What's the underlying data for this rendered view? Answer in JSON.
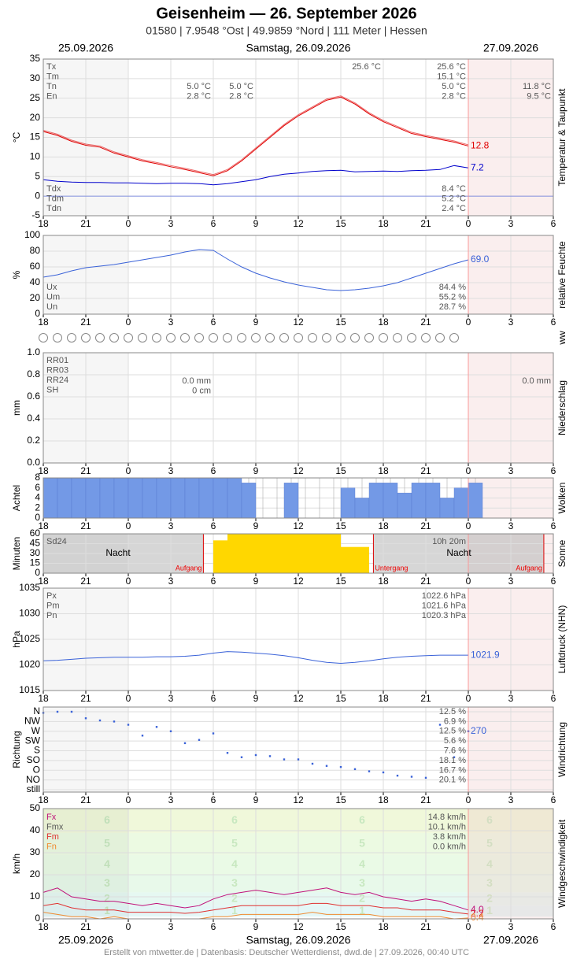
{
  "header": {
    "title": "Geisenheim  —  26. September 2026",
    "subtitle": "01580  |  7.9548 °Ost  |  49.9859 °Nord  |  111 Meter  |  Hessen",
    "date_left": "25.09.2026",
    "date_center": "Samstag, 26.09.2026",
    "date_right": "27.09.2026"
  },
  "x_axis": {
    "xlim": [
      0,
      36
    ],
    "xticks": [
      {
        "value": 0,
        "label": "18"
      },
      {
        "value": 3,
        "label": "21"
      },
      {
        "value": 6,
        "label": "0"
      },
      {
        "value": 9,
        "label": "3"
      },
      {
        "value": 12,
        "label": "6"
      },
      {
        "value": 15,
        "label": "9"
      },
      {
        "value": 18,
        "label": "12"
      },
      {
        "value": 21,
        "label": "15"
      },
      {
        "value": 24,
        "label": "18"
      },
      {
        "value": 27,
        "label": "21"
      },
      {
        "value": 30,
        "label": "0"
      },
      {
        "value": 33,
        "label": "3"
      },
      {
        "value": 36,
        "label": "6"
      }
    ],
    "now": 30,
    "x": [
      0,
      1,
      2,
      3,
      4,
      5,
      6,
      7,
      8,
      9,
      10,
      11,
      12,
      13,
      14,
      15,
      16,
      17,
      18,
      19,
      20,
      21,
      22,
      23,
      24,
      25,
      26,
      27,
      28,
      29,
      30
    ]
  },
  "ww": {
    "title": "ww"
  },
  "chart_data": [
    {
      "type": "line",
      "title": "Temperatur & Taupunkt",
      "ylabel": "°C",
      "ylim": [
        -5,
        35
      ],
      "yticks": [
        -5,
        0,
        5,
        10,
        15,
        20,
        25,
        30,
        35
      ],
      "grid": true,
      "series": [
        {
          "color": "#e00000",
          "values": [
            16.5,
            15.5,
            14,
            13,
            12.5,
            11,
            10,
            9,
            8.3,
            7.5,
            6.8,
            6,
            5.2,
            6.5,
            9,
            12,
            15,
            18,
            20.5,
            22.5,
            24.5,
            25.3,
            23.5,
            21,
            19,
            17.5,
            16,
            15.2,
            14.5,
            13.8,
            12.8
          ],
          "end_label": "12.8"
        },
        {
          "color": "#0000cc",
          "values": [
            4.2,
            3.8,
            3.6,
            3.5,
            3.5,
            3.4,
            3.4,
            3.3,
            3.2,
            3.3,
            3.3,
            3.2,
            2.9,
            3.2,
            3.7,
            4.2,
            5,
            5.6,
            5.9,
            6.3,
            6.5,
            6.6,
            6.2,
            6.3,
            6.4,
            6.3,
            6.5,
            6.6,
            6.8,
            7.8,
            7.2
          ],
          "end_label": "7.2"
        }
      ],
      "notes": {
        "left_top": [
          "Tx",
          "Tm",
          "Tn",
          "En"
        ],
        "max_col": [
          "25.6 °C"
        ],
        "right_top": [
          "25.6 °C",
          "15.1 °C",
          "5.0 °C",
          "2.8 °C"
        ],
        "night1": [
          "5.0 °C",
          "2.8 °C"
        ],
        "night2": [
          "5.0 °C",
          "2.8 °C"
        ],
        "far_right": [
          "11.8 °C",
          "9.5 °C"
        ],
        "left_bottom": [
          "Tdx",
          "Tdm",
          "Tdn"
        ],
        "right_bottom": [
          "8.4 °C",
          "5.2 °C",
          "2.4 °C"
        ]
      }
    },
    {
      "type": "line",
      "title": "relative Feuchte",
      "ylabel": "%",
      "ylim": [
        0,
        100
      ],
      "yticks": [
        0,
        20,
        40,
        60,
        80,
        100
      ],
      "grid": true,
      "series": [
        {
          "color": "#3a62d8",
          "values": [
            47,
            50,
            55,
            59,
            61,
            63,
            66,
            69,
            72,
            75,
            79,
            82,
            81,
            70,
            60,
            52,
            46,
            41,
            37,
            34,
            31,
            30,
            31,
            33,
            36,
            40,
            46,
            52,
            58,
            64,
            69
          ],
          "end_label": "69.0"
        }
      ],
      "notes": {
        "left_bottom": [
          "Ux",
          "Um",
          "Un"
        ],
        "right_bottom": [
          "84.4 %",
          "55.2 %",
          "28.7 %"
        ]
      }
    },
    {
      "type": "bar",
      "title": "Niederschlag",
      "ylabel": "mm",
      "ylim": [
        0,
        1
      ],
      "yticks": [
        {
          "value": 0,
          "label": "0.0"
        },
        {
          "value": 0.2,
          "label": "0.2"
        },
        {
          "value": 0.4,
          "label": "0.4"
        },
        {
          "value": 0.6,
          "label": "0.6"
        },
        {
          "value": 0.8,
          "label": "0.8"
        },
        {
          "value": 1,
          "label": "1.0"
        }
      ],
      "grid": true,
      "color": "#3a62d8",
      "values": [
        0,
        0,
        0,
        0,
        0,
        0,
        0,
        0,
        0,
        0,
        0,
        0,
        0,
        0,
        0,
        0,
        0,
        0,
        0,
        0,
        0,
        0,
        0,
        0,
        0,
        0,
        0,
        0,
        0,
        0,
        0
      ],
      "notes": {
        "left_top": [
          "RR01",
          "RR03",
          "RR24",
          "SH"
        ],
        "mid": [
          "0.0 mm",
          "0 cm"
        ],
        "far_right": [
          "0.0 mm"
        ]
      }
    },
    {
      "type": "bar",
      "title": "Wolken",
      "ylabel": "Achtel",
      "ylim": [
        0,
        8
      ],
      "yticks": [
        0,
        2,
        4,
        6,
        8
      ],
      "grid": true,
      "color": "#7399e6",
      "values": [
        8,
        8,
        8,
        8,
        8,
        8,
        8,
        8,
        8,
        8,
        8,
        8,
        8,
        8,
        7,
        0,
        0,
        7,
        0,
        0,
        0,
        6,
        4,
        7,
        7,
        5,
        7,
        7,
        4,
        6,
        7
      ],
      "notes": {}
    },
    {
      "type": "bar",
      "title": "Sonne",
      "ylabel": "Minuten",
      "ylim": [
        0,
        60
      ],
      "yticks": [
        0,
        15,
        30,
        45,
        60
      ],
      "grid": true,
      "color": "#ffd700",
      "values": [
        0,
        0,
        0,
        0,
        0,
        0,
        0,
        0,
        0,
        0,
        0,
        0,
        50,
        60,
        60,
        60,
        60,
        60,
        60,
        60,
        60,
        40,
        40,
        0,
        0,
        0,
        0,
        0,
        0,
        0,
        0
      ],
      "events": [
        {
          "x": 11.3,
          "label": "Aufgang"
        },
        {
          "x": 23.3,
          "label": "Untergang"
        },
        {
          "x": 35.33,
          "label": "Aufgang"
        }
      ],
      "notes": {
        "left_top": [
          "Sd24"
        ],
        "night1": [
          "Nacht"
        ],
        "night2": [
          "Nacht"
        ],
        "total": [
          "10h 20m"
        ]
      }
    },
    {
      "type": "line",
      "title": "Luftdruck (NHN)",
      "ylabel": "hPa",
      "ylim": [
        1015,
        1035
      ],
      "yticks": [
        1015,
        1020,
        1025,
        1030,
        1035
      ],
      "grid": true,
      "series": [
        {
          "color": "#3a62d8",
          "values": [
            1020.8,
            1020.9,
            1021.1,
            1021.3,
            1021.4,
            1021.5,
            1021.5,
            1021.5,
            1021.6,
            1021.6,
            1021.7,
            1021.9,
            1022.3,
            1022.6,
            1022.5,
            1022.3,
            1022.1,
            1021.8,
            1021.4,
            1020.9,
            1020.5,
            1020.3,
            1020.5,
            1020.8,
            1021.2,
            1021.5,
            1021.7,
            1021.8,
            1021.9,
            1021.9,
            1021.9
          ],
          "end_label": "1021.9"
        }
      ],
      "notes": {
        "left_top": [
          "Px",
          "Pm",
          "Pn"
        ],
        "right_top": [
          "1022.6 hPa",
          "1021.6 hPa",
          "1020.3 hPa"
        ]
      }
    },
    {
      "type": "scatter",
      "title": "Windrichtung",
      "ylabel": "Richtung",
      "ylim": [
        0,
        360
      ],
      "yticks": [
        {
          "value": 360,
          "label": "N"
        },
        {
          "value": 315,
          "label": "NW"
        },
        {
          "value": 270,
          "label": "W"
        },
        {
          "value": 225,
          "label": "SW"
        },
        {
          "value": 180,
          "label": "S"
        },
        {
          "value": 135,
          "label": "SO"
        },
        {
          "value": 90,
          "label": "O"
        },
        {
          "value": 45,
          "label": "NO"
        },
        {
          "value": 0,
          "label": "still"
        }
      ],
      "grid": true,
      "series": [
        {
          "color": "#3a62d8",
          "values": [
            355,
            360,
            360,
            330,
            320,
            315,
            300,
            250,
            290,
            270,
            215,
            230,
            260,
            170,
            150,
            160,
            155,
            140,
            140,
            120,
            110,
            105,
            95,
            85,
            80,
            65,
            60,
            55,
            300,
            150,
            270
          ],
          "end_label": "270"
        }
      ],
      "notes": {
        "right_top": [
          "12.5 %",
          "6.9 %",
          "12.5 %",
          "5.6 %",
          "7.6 %",
          "18.1 %",
          "16.7 %",
          "20.1 %"
        ]
      }
    },
    {
      "type": "line",
      "title": "Windgeschwindigkeit",
      "ylabel": "km/h",
      "ylim": [
        0,
        50
      ],
      "yticks": [
        0,
        10,
        20,
        30,
        40,
        50
      ],
      "grid": true,
      "beaufort": {
        "labels": [
          1,
          2,
          3,
          4,
          5,
          6
        ],
        "from": [
          1,
          6,
          12,
          20,
          29,
          39
        ],
        "colors": [
          "#e4f7f7",
          "#e6f8f2",
          "#e8f9ea",
          "#eafae6",
          "#ecfae2",
          "#f0f8da"
        ]
      },
      "series": [
        {
          "color": "#c0107a",
          "values": [
            12,
            14,
            10,
            9,
            8,
            8,
            7,
            6,
            7,
            6,
            5,
            6,
            9,
            11,
            12,
            13,
            12,
            11,
            12,
            13,
            14,
            12,
            11,
            12,
            10,
            9,
            8,
            9,
            8,
            6,
            4
          ],
          "end_label": "4.0"
        },
        {
          "color": "#e03030",
          "values": [
            6,
            7,
            5,
            4,
            4,
            4,
            3,
            3,
            3,
            3,
            2.5,
            3,
            4,
            5,
            6,
            6,
            6,
            6,
            6,
            7,
            7,
            6,
            6,
            6,
            5,
            5,
            4,
            4,
            4,
            3,
            2.2
          ],
          "end_label": "2.2"
        },
        {
          "color": "#f08a30",
          "values": [
            3,
            2,
            1,
            1,
            0,
            1,
            0,
            0,
            0,
            0,
            0,
            0,
            1,
            1,
            2,
            2,
            2,
            2,
            2,
            3,
            2,
            2,
            2,
            2,
            1,
            1,
            1,
            1,
            1,
            0,
            0.4
          ],
          "end_label": "0.4"
        }
      ],
      "notes": {
        "left_top": [
          "Fx",
          "Fmx",
          "Fm",
          "Fn"
        ],
        "right_top": [
          "14.8 km/h",
          "10.1 km/h",
          "3.8 km/h",
          "0.0 km/h"
        ]
      }
    }
  ],
  "footer": "Erstellt von mtwetter.de | Datenbasis: Deutscher Wetterdienst, dwd.de | 27.09.2026, 00:40 UTC"
}
